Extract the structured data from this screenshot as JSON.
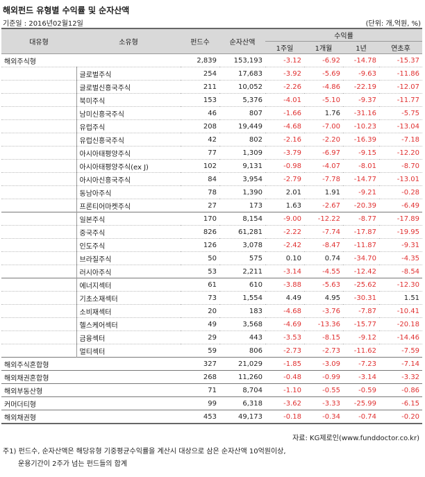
{
  "header": {
    "title": "해외펀드 유형별 수익률 및 순자산액",
    "date": "기준일 : 2016년02월12일",
    "unit": "(단위: 개,억원, %)"
  },
  "table": {
    "columns": [
      "대유형",
      "소유형",
      "펀드수",
      "순자산액"
    ],
    "return_group": "수익률",
    "return_columns": [
      "1주일",
      "1개월",
      "1년",
      "연초후"
    ],
    "groups": [
      {
        "name": "해외주식형",
        "values": [
          "2,839",
          "153,193",
          "-3.12",
          "-6.92",
          "-14.78",
          "-15.37"
        ],
        "subgroups": [
          [
            {
              "name": "글로벌주식",
              "values": [
                "254",
                "17,683",
                "-3.92",
                "-5.69",
                "-9.63",
                "-11.86"
              ]
            },
            {
              "name": "글로벌신흥국주식",
              "values": [
                "211",
                "10,052",
                "-2.26",
                "-4.86",
                "-22.19",
                "-12.07"
              ]
            },
            {
              "name": "북미주식",
              "values": [
                "153",
                "5,376",
                "-4.01",
                "-5.10",
                "-9.37",
                "-11.77"
              ]
            },
            {
              "name": "남미신흥국주식",
              "values": [
                "46",
                "807",
                "-1.66",
                "1.76",
                "-31.16",
                "-5.75"
              ]
            },
            {
              "name": "유럽주식",
              "values": [
                "208",
                "19,449",
                "-4.68",
                "-7.00",
                "-10.23",
                "-13.04"
              ]
            },
            {
              "name": "유럽신흥국주식",
              "values": [
                "42",
                "802",
                "-2.16",
                "-2.20",
                "-16.39",
                "-7.18"
              ]
            },
            {
              "name": "아시아태평양주식",
              "values": [
                "77",
                "1,309",
                "-3.79",
                "-6.97",
                "-9.15",
                "-12.20"
              ]
            },
            {
              "name": "아시아태평양주식(ex J)",
              "values": [
                "102",
                "9,131",
                "-0.98",
                "-4.07",
                "-8.01",
                "-8.70"
              ]
            },
            {
              "name": "아시아신흥국주식",
              "values": [
                "84",
                "3,954",
                "-2.79",
                "-7.78",
                "-14.77",
                "-13.01"
              ]
            },
            {
              "name": "동남아주식",
              "values": [
                "78",
                "1,390",
                "2.01",
                "1.91",
                "-9.21",
                "-0.28"
              ]
            },
            {
              "name": "프론티어마켓주식",
              "values": [
                "27",
                "173",
                "1.63",
                "-2.67",
                "-20.39",
                "-6.49"
              ]
            }
          ],
          [
            {
              "name": "일본주식",
              "values": [
                "170",
                "8,154",
                "-9.00",
                "-12.22",
                "-8.77",
                "-17.89"
              ]
            },
            {
              "name": "중국주식",
              "values": [
                "826",
                "61,281",
                "-2.22",
                "-7.74",
                "-17.87",
                "-19.95"
              ]
            },
            {
              "name": "인도주식",
              "values": [
                "126",
                "3,078",
                "-2.42",
                "-8.47",
                "-11.87",
                "-9.31"
              ]
            },
            {
              "name": "브라질주식",
              "values": [
                "50",
                "575",
                "0.10",
                "0.74",
                "-34.70",
                "-4.35"
              ]
            },
            {
              "name": "러시아주식",
              "values": [
                "53",
                "2,211",
                "-3.14",
                "-4.55",
                "-12.42",
                "-8.54"
              ]
            }
          ],
          [
            {
              "name": "에너지섹터",
              "values": [
                "61",
                "610",
                "-3.88",
                "-5.63",
                "-25.62",
                "-12.30"
              ]
            },
            {
              "name": "기초소재섹터",
              "values": [
                "73",
                "1,554",
                "4.49",
                "4.95",
                "-30.31",
                "1.51"
              ]
            },
            {
              "name": "소비재섹터",
              "values": [
                "20",
                "183",
                "-4.68",
                "-3.76",
                "-7.87",
                "-10.41"
              ]
            },
            {
              "name": "헬스케어섹터",
              "values": [
                "49",
                "3,568",
                "-4.69",
                "-13.36",
                "-15.77",
                "-20.18"
              ]
            },
            {
              "name": "금융섹터",
              "values": [
                "29",
                "443",
                "-3.53",
                "-8.15",
                "-9.12",
                "-14.46"
              ]
            },
            {
              "name": "멀티섹터",
              "values": [
                "59",
                "806",
                "-2.73",
                "-2.73",
                "-11.62",
                "-7.59"
              ]
            }
          ]
        ]
      },
      {
        "name": "해외주식혼합형",
        "values": [
          "327",
          "21,029",
          "-1.85",
          "-3.09",
          "-7.23",
          "-7.14"
        ]
      },
      {
        "name": "해외채권혼합형",
        "values": [
          "268",
          "11,260",
          "-0.48",
          "-0.99",
          "-3.14",
          "-3.32"
        ]
      },
      {
        "name": "해외부동산형",
        "values": [
          "71",
          "8,704",
          "-1.10",
          "-0.55",
          "-0.59",
          "-0.86"
        ]
      },
      {
        "name": "커머더티형",
        "values": [
          "99",
          "6,318",
          "-3.62",
          "-3.33",
          "-25.99",
          "-6.15"
        ]
      },
      {
        "name": "해외채권형",
        "values": [
          "453",
          "49,173",
          "-0.18",
          "-0.34",
          "-0.74",
          "-0.20"
        ]
      }
    ]
  },
  "footer": {
    "source": "자료: KG제로인(www.funddoctor.co.kr)",
    "notes": [
      "주1) 펀드수, 순자산액은 해당유형 기중평균수익률을 계산시 대상으로 삼은 순자산액 10억원이상,",
      "운용기간이 2주가 넘는 펀드들의 합계"
    ]
  }
}
